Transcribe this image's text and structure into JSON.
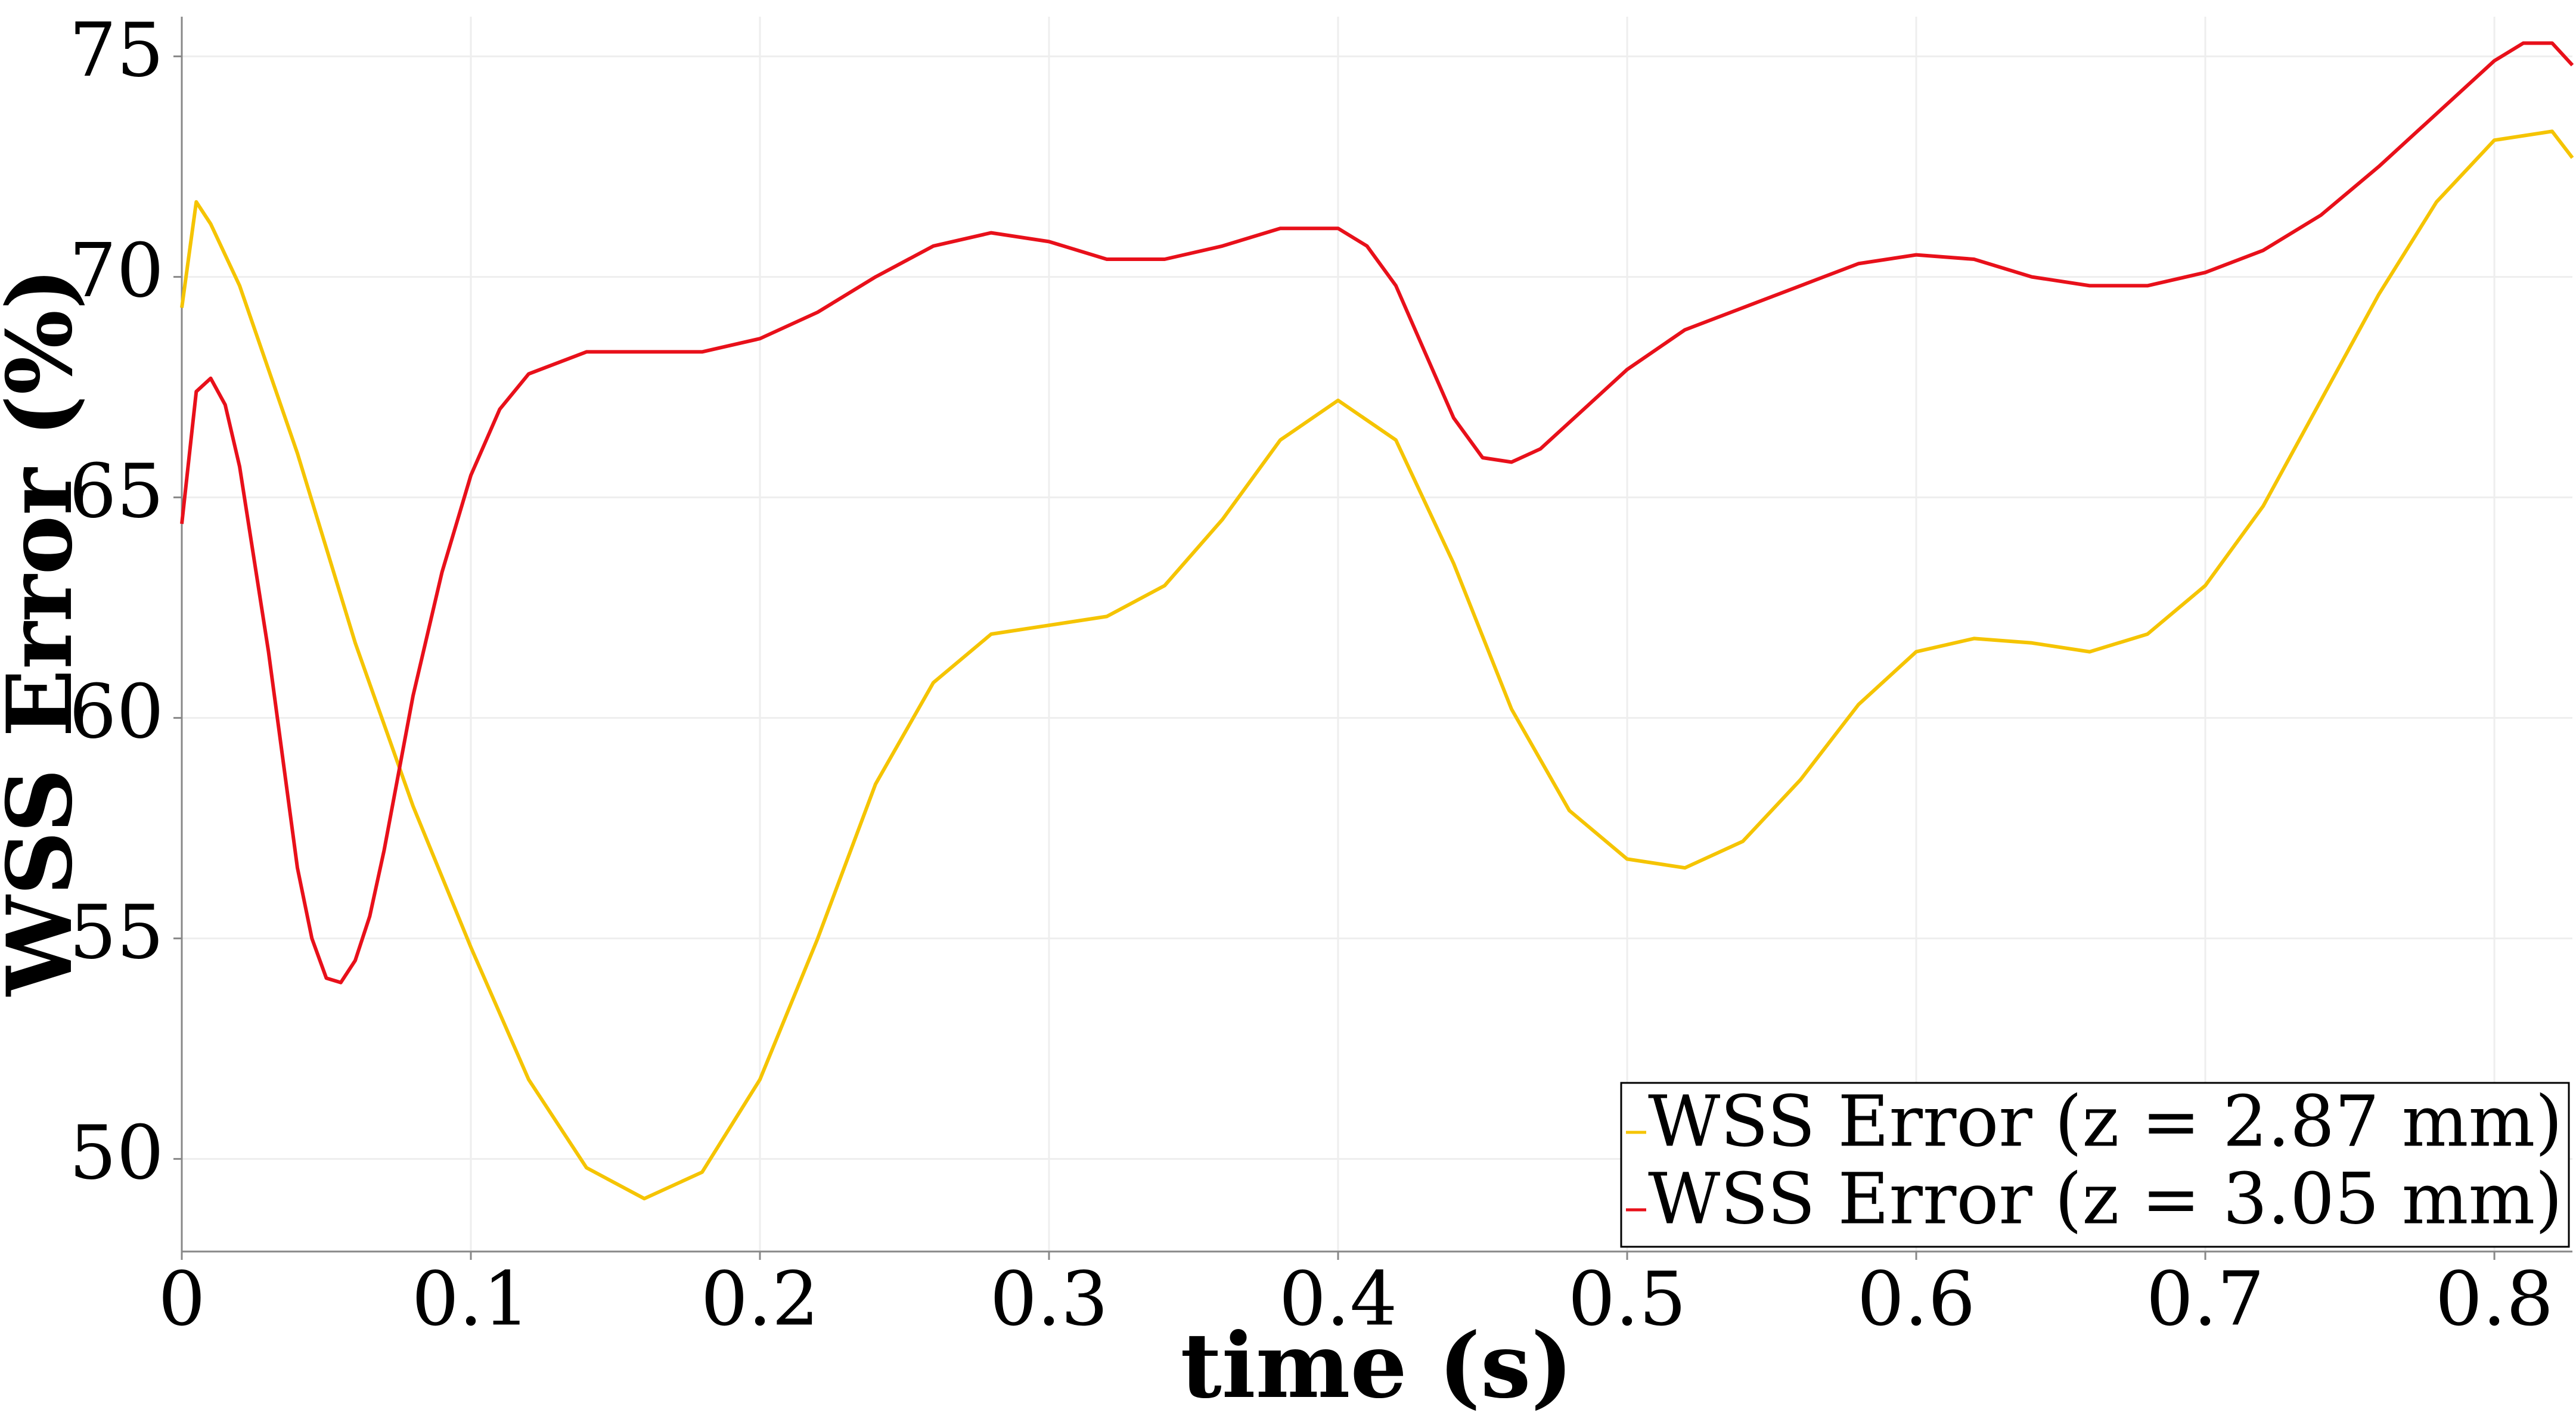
{
  "chart_data": {
    "type": "line",
    "xlabel": "time (s)",
    "ylabel": "WSS Error (%)",
    "xlim": [
      0,
      0.827
    ],
    "xticks": [
      0,
      0.1,
      0.2,
      0.3,
      0.4,
      0.5,
      0.6,
      0.7,
      0.8
    ],
    "ylim": [
      47.9,
      75.9
    ],
    "yticks": [
      50,
      55,
      60,
      65,
      70,
      75
    ],
    "grid": true,
    "legend": "lower right",
    "series": [
      {
        "name": "WSS Error (z = 2.87 mm)",
        "color": "#f5c400",
        "x": [
          0,
          0.005,
          0.01,
          0.02,
          0.04,
          0.06,
          0.08,
          0.1,
          0.12,
          0.14,
          0.16,
          0.18,
          0.2,
          0.22,
          0.24,
          0.26,
          0.28,
          0.3,
          0.32,
          0.34,
          0.36,
          0.38,
          0.4,
          0.42,
          0.44,
          0.46,
          0.48,
          0.5,
          0.52,
          0.54,
          0.56,
          0.58,
          0.6,
          0.62,
          0.64,
          0.66,
          0.68,
          0.7,
          0.72,
          0.74,
          0.76,
          0.78,
          0.8,
          0.82,
          0.827
        ],
        "values": [
          69.3,
          71.7,
          71.2,
          69.8,
          66,
          61.7,
          58,
          54.8,
          51.8,
          49.8,
          49.1,
          49.7,
          51.8,
          55,
          58.5,
          60.8,
          61.9,
          62.1,
          62.3,
          63,
          64.5,
          66.3,
          67.2,
          66.3,
          63.5,
          60.2,
          57.9,
          56.8,
          56.6,
          57.2,
          58.6,
          60.3,
          61.5,
          61.8,
          61.7,
          61.5,
          61.9,
          63,
          64.8,
          67.2,
          69.6,
          71.7,
          73.1,
          73.3,
          72.7
        ]
      },
      {
        "name": "WSS Error (z = 3.05 mm)",
        "color": "#e8101a",
        "x": [
          0,
          0.005,
          0.01,
          0.015,
          0.02,
          0.03,
          0.04,
          0.045,
          0.05,
          0.055,
          0.06,
          0.065,
          0.07,
          0.08,
          0.09,
          0.1,
          0.11,
          0.12,
          0.14,
          0.16,
          0.18,
          0.2,
          0.22,
          0.24,
          0.26,
          0.28,
          0.3,
          0.32,
          0.34,
          0.36,
          0.38,
          0.4,
          0.41,
          0.42,
          0.43,
          0.44,
          0.45,
          0.46,
          0.47,
          0.48,
          0.5,
          0.52,
          0.54,
          0.56,
          0.58,
          0.6,
          0.62,
          0.64,
          0.66,
          0.68,
          0.7,
          0.72,
          0.74,
          0.76,
          0.78,
          0.8,
          0.81,
          0.82,
          0.827
        ],
        "values": [
          64.4,
          67.4,
          67.7,
          67.1,
          65.7,
          61.5,
          56.6,
          55,
          54.1,
          54,
          54.5,
          55.5,
          57,
          60.5,
          63.3,
          65.5,
          67,
          67.8,
          68.3,
          68.3,
          68.3,
          68.6,
          69.2,
          70,
          70.7,
          71,
          70.8,
          70.4,
          70.4,
          70.7,
          71.1,
          71.1,
          70.7,
          69.8,
          68.3,
          66.8,
          65.9,
          65.8,
          66.1,
          66.7,
          67.9,
          68.8,
          69.3,
          69.8,
          70.3,
          70.5,
          70.4,
          70,
          69.8,
          69.8,
          70.1,
          70.6,
          71.4,
          72.5,
          73.7,
          74.9,
          75.3,
          75.3,
          74.8
        ]
      }
    ]
  }
}
